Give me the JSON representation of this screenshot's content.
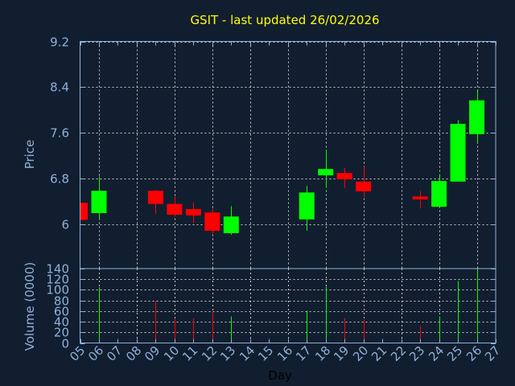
{
  "chart_data": [
    {
      "type": "candlestick",
      "title": "GSIT - last updated 26/02/2026",
      "ylabel": "Price",
      "ylim": [
        5.23,
        9.2
      ],
      "yticks": [
        "6",
        "6.8",
        "7.6",
        "8.4",
        "9.2"
      ],
      "grid": true,
      "colors": {
        "up": "#00ff00",
        "down": "#ff0000",
        "background": "#111e2f",
        "axis": "#8fb0d8",
        "title": "#ffff00"
      },
      "x": [
        "05",
        "06",
        "09",
        "10",
        "11",
        "12",
        "13",
        "17",
        "18",
        "19",
        "20",
        "23",
        "24",
        "25",
        "26"
      ],
      "open": [
        6.38,
        6.2,
        6.59,
        6.36,
        6.27,
        6.21,
        5.85,
        6.09,
        6.86,
        6.9,
        6.75,
        6.49,
        6.31,
        6.75,
        7.58
      ],
      "high": [
        6.38,
        6.84,
        6.6,
        6.49,
        6.39,
        6.28,
        6.32,
        6.68,
        7.31,
        6.99,
        7.01,
        6.59,
        6.88,
        7.83,
        8.33
      ],
      "low": [
        6.08,
        6.09,
        6.19,
        6.14,
        6.02,
        5.82,
        5.82,
        5.89,
        6.64,
        6.64,
        6.48,
        6.28,
        6.31,
        6.75,
        7.41
      ],
      "close": [
        6.08,
        6.59,
        6.36,
        6.17,
        6.16,
        5.89,
        6.14,
        6.56,
        6.97,
        6.79,
        6.58,
        6.44,
        6.76,
        7.76,
        8.17
      ]
    },
    {
      "type": "bar",
      "ylabel": "Volume (0000)",
      "xlabel": "Day",
      "ylim": [
        0,
        140
      ],
      "yticks": [
        "0",
        "20",
        "40",
        "60",
        "80",
        "100",
        "120",
        "140"
      ],
      "xticks": [
        "05",
        "06",
        "07",
        "08",
        "09",
        "10",
        "11",
        "12",
        "13",
        "14",
        "15",
        "16",
        "17",
        "18",
        "19",
        "20",
        "21",
        "22",
        "23",
        "24",
        "25",
        "26",
        "27"
      ],
      "x": [
        "06",
        "09",
        "10",
        "11",
        "12",
        "13",
        "17",
        "18",
        "19",
        "20",
        "23",
        "24",
        "25",
        "26"
      ],
      "values": [
        105,
        79,
        45,
        46,
        59,
        50,
        61,
        106,
        47,
        44,
        33,
        50,
        117,
        140
      ],
      "direction": [
        "up",
        "down",
        "down",
        "down",
        "down",
        "up",
        "up",
        "up",
        "down",
        "down",
        "down",
        "up",
        "up",
        "up"
      ]
    }
  ]
}
